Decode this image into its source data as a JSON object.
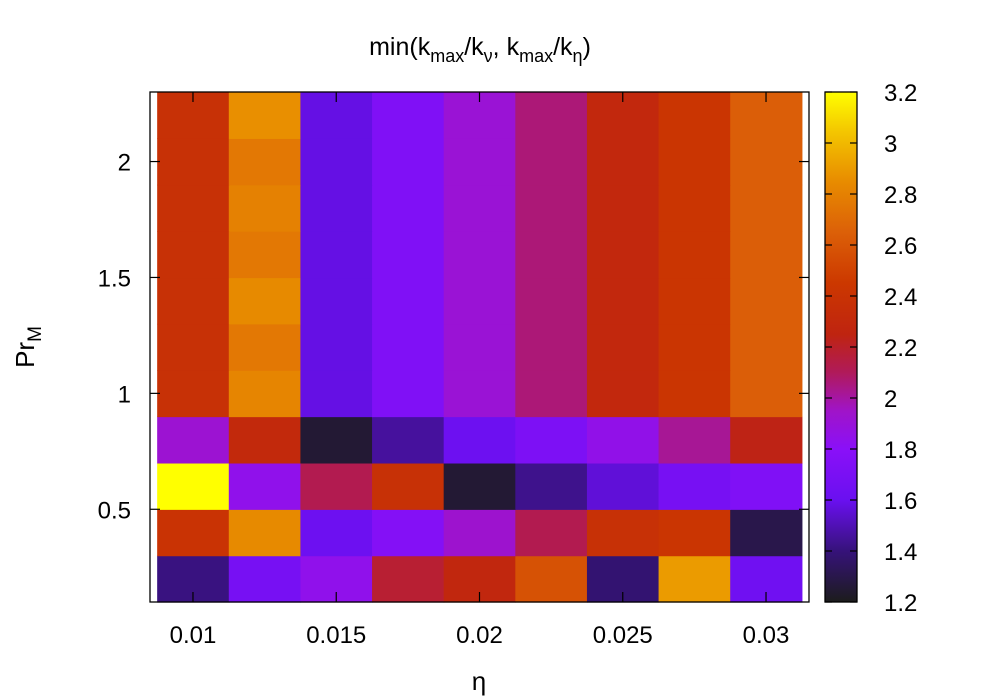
{
  "chart_data": {
    "type": "heatmap",
    "title": "min(k_max/k_ν, k_max/k_η)",
    "title_parts": {
      "prefix": "min(k",
      "sub1": "max",
      "mid1": "/k",
      "sub2": "ν",
      "mid2": ", k",
      "sub3": "max",
      "mid3": "/k",
      "sub4": "η",
      "suffix": ")"
    },
    "xlabel": "η",
    "ylabel_main": "Pr",
    "ylabel_sub": "M",
    "x": [
      0.01,
      0.0125,
      0.015,
      0.0175,
      0.02,
      0.0225,
      0.025,
      0.0275,
      0.03
    ],
    "y": [
      0.2,
      0.4,
      0.6,
      0.8,
      1.0,
      1.2,
      1.4,
      1.6,
      1.8,
      2.0,
      2.2
    ],
    "xlim": [
      0.0085,
      0.0315
    ],
    "ylim": [
      0.1,
      2.3
    ],
    "xticks": [
      0.01,
      0.015,
      0.02,
      0.025,
      0.03
    ],
    "xtick_labels": [
      "0.01",
      "0.015",
      "0.02",
      "0.025",
      "0.03"
    ],
    "yticks": [
      0.5,
      1.0,
      1.5,
      2.0
    ],
    "ytick_labels": [
      "0.5",
      "1",
      "1.5",
      "2"
    ],
    "colorbar": {
      "range": [
        1.2,
        3.2
      ],
      "ticks": [
        1.2,
        1.4,
        1.6,
        1.8,
        2.0,
        2.2,
        2.4,
        2.6,
        2.8,
        3.0,
        3.2
      ],
      "tick_labels": [
        "1.2",
        "1.4",
        "1.6",
        "1.8",
        "2",
        "2.2",
        "2.4",
        "2.6",
        "2.8",
        "3",
        "3.2"
      ]
    },
    "colormap": [
      [
        1.2,
        "#1c1c1c"
      ],
      [
        1.4,
        "#36127a"
      ],
      [
        1.6,
        "#6a10f0"
      ],
      [
        1.8,
        "#8a10f8"
      ],
      [
        1.95,
        "#a014c8"
      ],
      [
        2.1,
        "#b01a5a"
      ],
      [
        2.25,
        "#bf2410"
      ],
      [
        2.45,
        "#cc3800"
      ],
      [
        2.65,
        "#dc6008"
      ],
      [
        2.85,
        "#e88c00"
      ],
      [
        3.05,
        "#f4c800"
      ],
      [
        3.2,
        "#ffff00"
      ]
    ],
    "values": [
      [
        1.41,
        1.68,
        1.84,
        2.18,
        2.28,
        2.58,
        1.38,
        2.9,
        1.64
      ],
      [
        2.4,
        2.84,
        1.62,
        1.76,
        1.93,
        2.12,
        2.38,
        2.42,
        1.3
      ],
      [
        3.2,
        1.84,
        2.12,
        2.38,
        1.25,
        1.43,
        1.56,
        1.68,
        1.74
      ],
      [
        1.92,
        2.3,
        1.25,
        1.46,
        1.62,
        1.72,
        1.85,
        2.02,
        2.24
      ],
      [
        2.38,
        2.82,
        1.58,
        1.74,
        1.91,
        2.06,
        2.29,
        2.42,
        2.64
      ],
      [
        2.38,
        2.76,
        1.58,
        1.74,
        1.91,
        2.06,
        2.29,
        2.42,
        2.64
      ],
      [
        2.38,
        2.84,
        1.58,
        1.74,
        1.91,
        2.06,
        2.29,
        2.42,
        2.64
      ],
      [
        2.38,
        2.76,
        1.58,
        1.74,
        1.91,
        2.06,
        2.29,
        2.42,
        2.64
      ],
      [
        2.38,
        2.8,
        1.58,
        1.74,
        1.91,
        2.06,
        2.29,
        2.42,
        2.64
      ],
      [
        2.38,
        2.76,
        1.58,
        1.74,
        1.91,
        2.06,
        2.29,
        2.42,
        2.64
      ],
      [
        2.38,
        2.86,
        1.58,
        1.74,
        1.91,
        2.06,
        2.29,
        2.42,
        2.64
      ]
    ]
  }
}
